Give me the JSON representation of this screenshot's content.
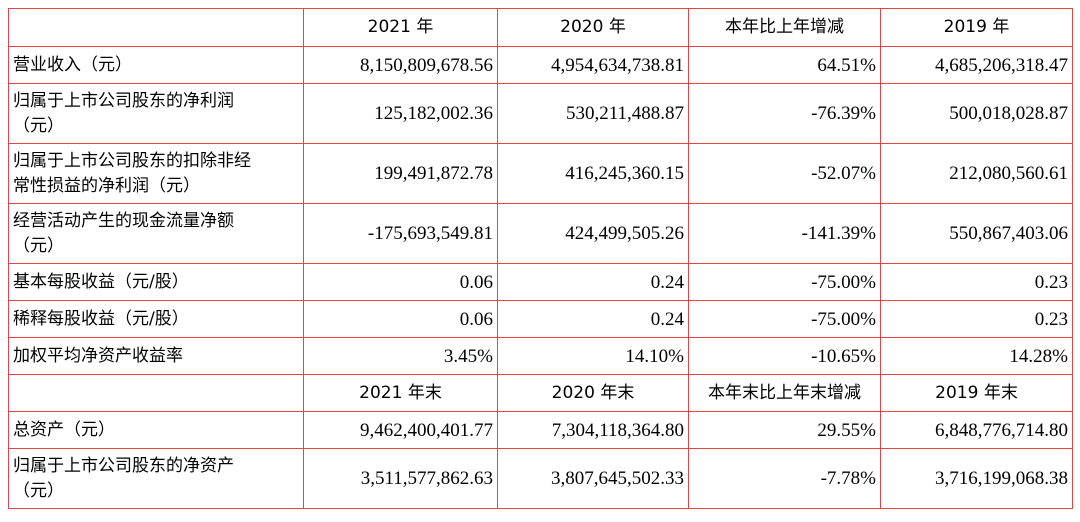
{
  "table": {
    "header": [
      "2021 年",
      "2020 年",
      "本年比上年增减",
      "2019 年"
    ],
    "rows": [
      {
        "label": "营业收入（元）",
        "cells": [
          "8,150,809,678.56",
          "4,954,634,738.81",
          "64.51%",
          "4,685,206,318.47"
        ]
      },
      {
        "label": "归属于上市公司股东的净利润\n（元）",
        "cells": [
          "125,182,002.36",
          "530,211,488.87",
          "-76.39%",
          "500,018,028.87"
        ]
      },
      {
        "label": "归属于上市公司股东的扣除非经\n常性损益的净利润（元）",
        "cells": [
          "199,491,872.78",
          "416,245,360.15",
          "-52.07%",
          "212,080,560.61"
        ]
      },
      {
        "label": "经营活动产生的现金流量净额\n（元）",
        "cells": [
          "-175,693,549.81",
          "424,499,505.26",
          "-141.39%",
          "550,867,403.06"
        ]
      },
      {
        "label": "基本每股收益（元/股）",
        "cells": [
          "0.06",
          "0.24",
          "-75.00%",
          "0.23"
        ]
      },
      {
        "label": "稀释每股收益（元/股）",
        "cells": [
          "0.06",
          "0.24",
          "-75.00%",
          "0.23"
        ]
      },
      {
        "label": "加权平均净资产收益率",
        "cells": [
          "3.45%",
          "14.10%",
          "-10.65%",
          "14.28%"
        ]
      }
    ],
    "subheader": [
      "2021 年末",
      "2020 年末",
      "本年末比上年末增减",
      "2019 年末"
    ],
    "rows2": [
      {
        "label": "总资产（元）",
        "cells": [
          "9,462,400,401.77",
          "7,304,118,364.80",
          "29.55%",
          "6,848,776,714.80"
        ]
      },
      {
        "label": "归属于上市公司股东的净资产\n（元）",
        "cells": [
          "3,511,577,862.63",
          "3,807,645,502.33",
          "-7.78%",
          "3,716,199,068.38"
        ]
      }
    ]
  }
}
